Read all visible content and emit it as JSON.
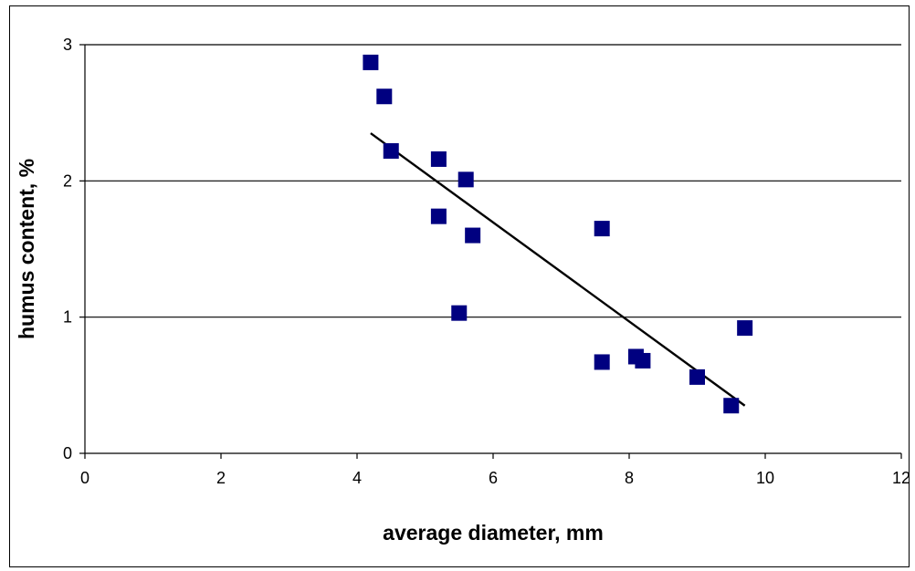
{
  "chart_data": {
    "type": "scatter",
    "xlabel": "average diameter, mm",
    "ylabel": "humus content, %",
    "xlim": [
      0,
      12
    ],
    "ylim": [
      0,
      3
    ],
    "x_ticks": [
      "0",
      "2",
      "4",
      "6",
      "8",
      "10",
      "12"
    ],
    "y_ticks": [
      "0",
      "1",
      "2",
      "3"
    ],
    "grid": "horizontal major gridlines",
    "legend": "none",
    "marker": "square",
    "colors": {
      "marker": "#000080",
      "trendline": "#000000",
      "grid": "#000000"
    },
    "series": [
      {
        "points": [
          {
            "x": 4.2,
            "y": 2.87
          },
          {
            "x": 4.4,
            "y": 2.62
          },
          {
            "x": 4.5,
            "y": 2.22
          },
          {
            "x": 5.2,
            "y": 2.16
          },
          {
            "x": 5.6,
            "y": 2.01
          },
          {
            "x": 5.2,
            "y": 1.74
          },
          {
            "x": 5.7,
            "y": 1.6
          },
          {
            "x": 5.5,
            "y": 1.03
          },
          {
            "x": 7.6,
            "y": 1.65
          },
          {
            "x": 7.6,
            "y": 0.67
          },
          {
            "x": 8.1,
            "y": 0.71
          },
          {
            "x": 8.2,
            "y": 0.68
          },
          {
            "x": 9.0,
            "y": 0.56
          },
          {
            "x": 9.5,
            "y": 0.35
          },
          {
            "x": 9.7,
            "y": 0.92
          }
        ]
      }
    ],
    "trendline": {
      "type": "linear",
      "x": [
        4.2,
        9.7
      ],
      "y": [
        2.35,
        0.35
      ]
    }
  }
}
